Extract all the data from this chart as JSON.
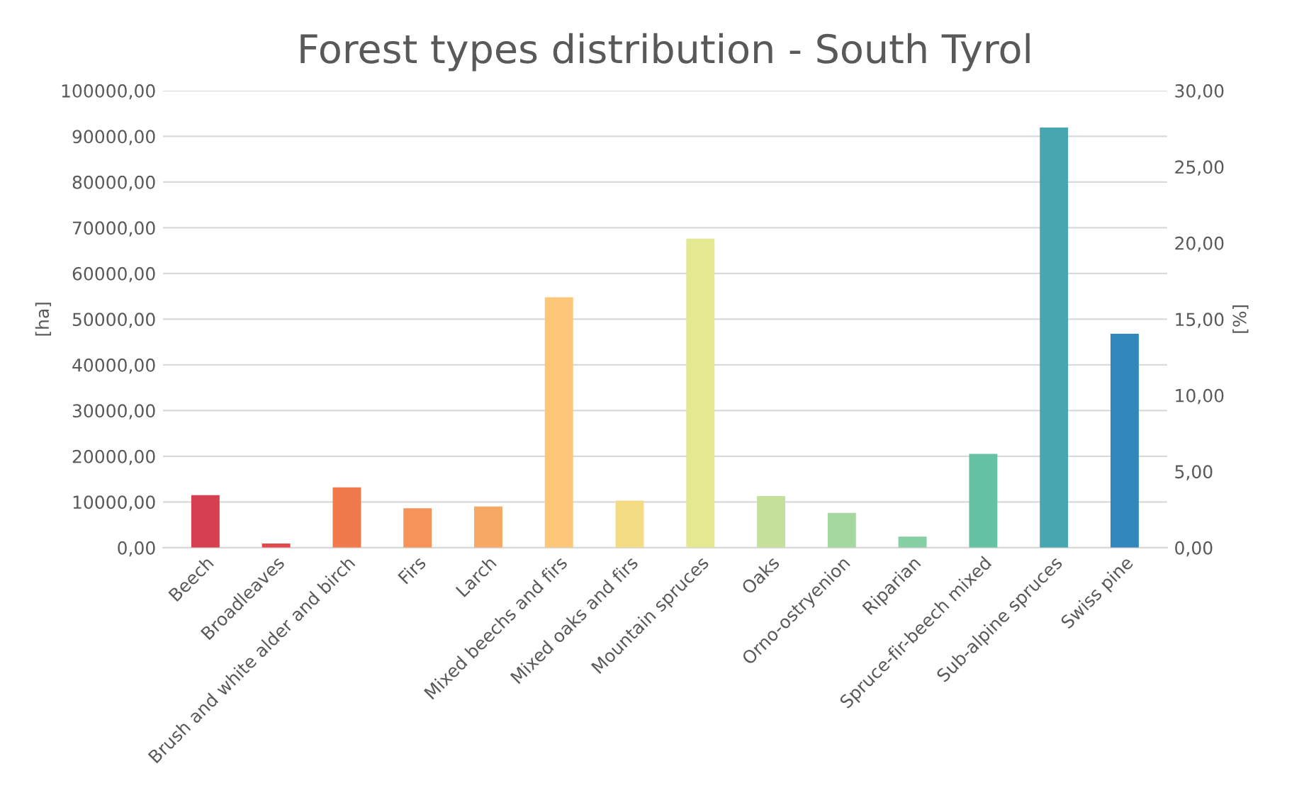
{
  "chart_data": {
    "type": "bar",
    "title": "Forest types distribution - South Tyrol",
    "ylabel": "[ha]",
    "y2label": "[%]",
    "categories": [
      "Beech",
      "Broadleaves",
      "Brush and white alder and birch",
      "Firs",
      "Larch",
      "Mixed beechs and firs",
      "Mixed oaks and firs",
      "Mountain spruces",
      "Oaks",
      "Orno-ostryenion",
      "Riparian",
      "Spruce-fir-beech mixed",
      "Sub-alpine spruces",
      "Swiss pine"
    ],
    "values": [
      11500,
      900,
      13200,
      8600,
      9000,
      54800,
      10300,
      67600,
      11300,
      7600,
      2400,
      20500,
      91900,
      46800
    ],
    "colors": [
      "#d63f50",
      "#e0484a",
      "#f07a4c",
      "#f5935a",
      "#f7a864",
      "#fdc678",
      "#f3dc84",
      "#e3e891",
      "#c5e09a",
      "#a4d8a0",
      "#86cfa5",
      "#66c2a5",
      "#48a6b0",
      "#3288bd"
    ],
    "ylim": [
      0,
      100000
    ],
    "yticks": [
      {
        "value": 0,
        "label": "0,00"
      },
      {
        "value": 10000,
        "label": "10000,00"
      },
      {
        "value": 20000,
        "label": "20000,00"
      },
      {
        "value": 30000,
        "label": "30000,00"
      },
      {
        "value": 40000,
        "label": "40000,00"
      },
      {
        "value": 50000,
        "label": "50000,00"
      },
      {
        "value": 60000,
        "label": "60000,00"
      },
      {
        "value": 70000,
        "label": "70000,00"
      },
      {
        "value": 80000,
        "label": "80000,00"
      },
      {
        "value": 90000,
        "label": "90000,00"
      },
      {
        "value": 100000,
        "label": "100000,00"
      }
    ],
    "y2lim": [
      0,
      30
    ],
    "y2ticks": [
      {
        "value": 0,
        "label": "0,00"
      },
      {
        "value": 5,
        "label": "5,00"
      },
      {
        "value": 10,
        "label": "10,00"
      },
      {
        "value": 15,
        "label": "15,00"
      },
      {
        "value": 20,
        "label": "20,00"
      },
      {
        "value": 25,
        "label": "25,00"
      },
      {
        "value": 30,
        "label": "30,00"
      }
    ],
    "grid": "y",
    "legend": false
  }
}
